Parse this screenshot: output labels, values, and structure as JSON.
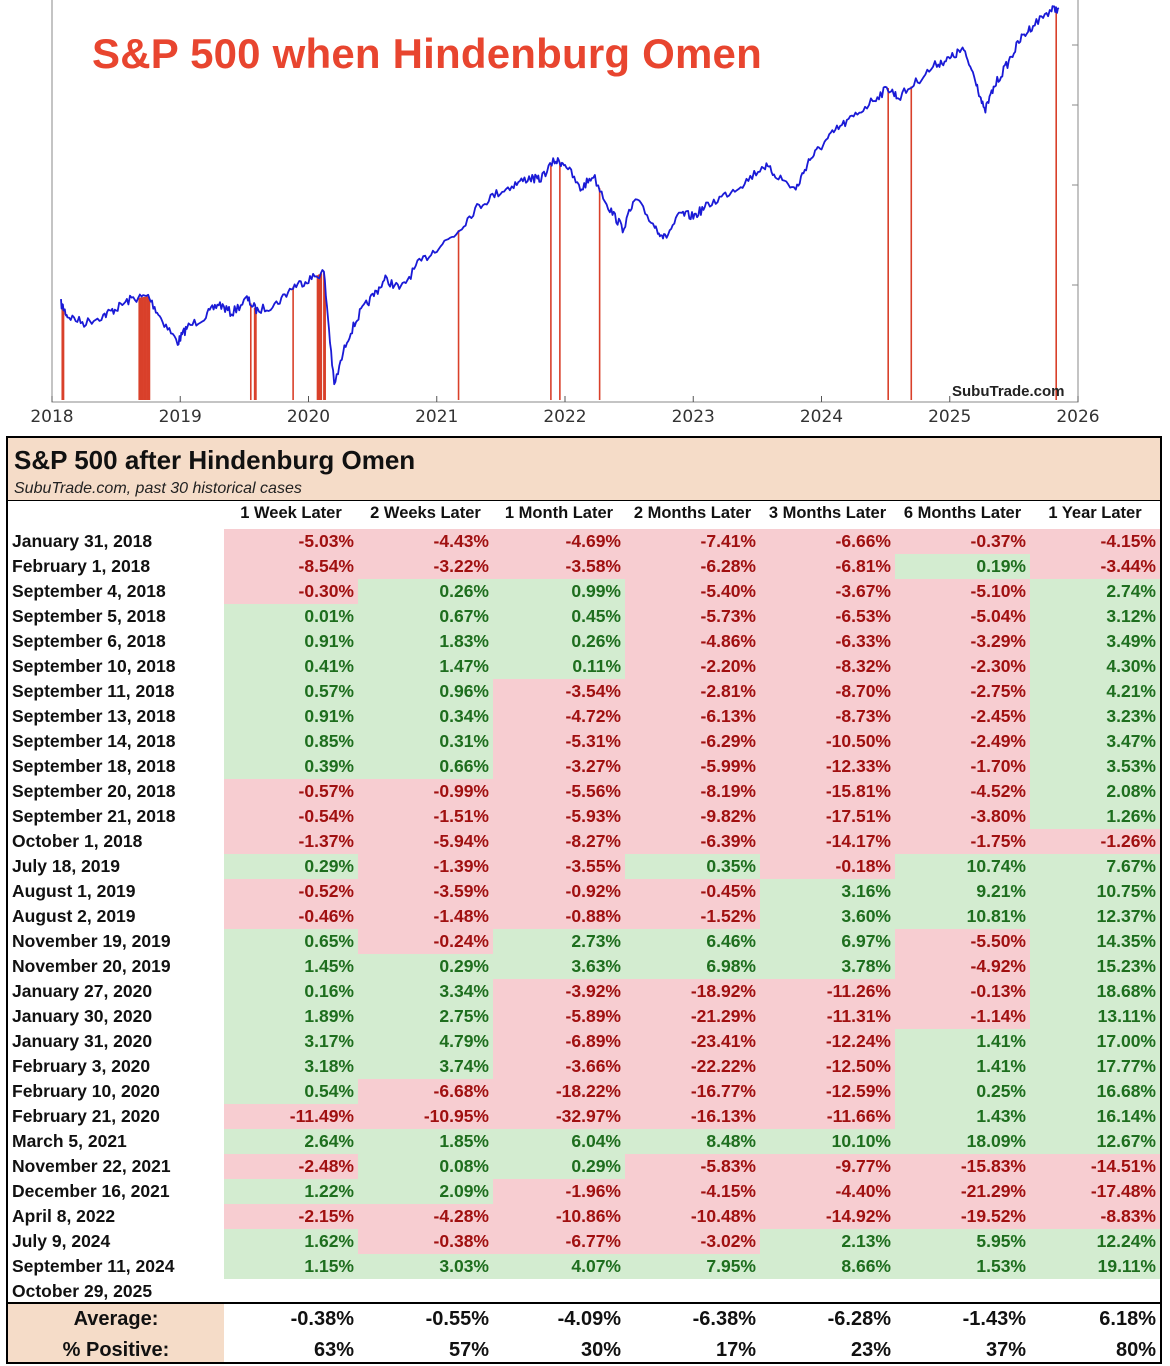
{
  "chart_data": [
    {
      "type": "line",
      "title": "S&P 500 when Hindenburg Omen",
      "x_ticks": [
        "2018",
        "2019",
        "2020",
        "2021",
        "2022",
        "2023",
        "2024",
        "2025",
        "2026"
      ],
      "xlim": [
        2018.0,
        2026.0
      ],
      "grid": false,
      "series": [
        {
          "color": "#1a1ad6",
          "points": [
            [
              2018.07,
              0.13
            ],
            [
              2018.12,
              0.08
            ],
            [
              2018.25,
              0.05
            ],
            [
              2018.4,
              0.08
            ],
            [
              2018.5,
              0.11
            ],
            [
              2018.62,
              0.15
            ],
            [
              2018.75,
              0.16
            ],
            [
              2018.85,
              0.07
            ],
            [
              2018.98,
              -0.03
            ],
            [
              2019.05,
              0.03
            ],
            [
              2019.2,
              0.08
            ],
            [
              2019.3,
              0.13
            ],
            [
              2019.4,
              0.09
            ],
            [
              2019.52,
              0.15
            ],
            [
              2019.6,
              0.1
            ],
            [
              2019.75,
              0.13
            ],
            [
              2019.88,
              0.2
            ],
            [
              2020.0,
              0.23
            ],
            [
              2020.12,
              0.26
            ],
            [
              2020.2,
              -0.21
            ],
            [
              2020.3,
              -0.02
            ],
            [
              2020.4,
              0.09
            ],
            [
              2020.5,
              0.16
            ],
            [
              2020.6,
              0.23
            ],
            [
              2020.72,
              0.19
            ],
            [
              2020.85,
              0.29
            ],
            [
              2021.0,
              0.36
            ],
            [
              2021.15,
              0.42
            ],
            [
              2021.3,
              0.52
            ],
            [
              2021.45,
              0.58
            ],
            [
              2021.6,
              0.62
            ],
            [
              2021.72,
              0.65
            ],
            [
              2021.8,
              0.64
            ],
            [
              2021.92,
              0.72
            ],
            [
              2022.0,
              0.71
            ],
            [
              2022.12,
              0.6
            ],
            [
              2022.22,
              0.66
            ],
            [
              2022.35,
              0.52
            ],
            [
              2022.45,
              0.44
            ],
            [
              2022.55,
              0.56
            ],
            [
              2022.7,
              0.45
            ],
            [
              2022.78,
              0.4
            ],
            [
              2022.9,
              0.5
            ],
            [
              2023.0,
              0.49
            ],
            [
              2023.1,
              0.53
            ],
            [
              2023.25,
              0.58
            ],
            [
              2023.4,
              0.63
            ],
            [
              2023.55,
              0.7
            ],
            [
              2023.65,
              0.66
            ],
            [
              2023.8,
              0.6
            ],
            [
              2023.9,
              0.72
            ],
            [
              2024.0,
              0.78
            ],
            [
              2024.12,
              0.85
            ],
            [
              2024.25,
              0.9
            ],
            [
              2024.4,
              0.97
            ],
            [
              2024.52,
              1.02
            ],
            [
              2024.6,
              0.98
            ],
            [
              2024.75,
              1.05
            ],
            [
              2024.9,
              1.12
            ],
            [
              2025.0,
              1.14
            ],
            [
              2025.1,
              1.18
            ],
            [
              2025.2,
              1.06
            ],
            [
              2025.27,
              0.92
            ],
            [
              2025.35,
              1.03
            ],
            [
              2025.45,
              1.12
            ],
            [
              2025.55,
              1.22
            ],
            [
              2025.65,
              1.28
            ],
            [
              2025.78,
              1.34
            ],
            [
              2025.85,
              1.35
            ]
          ]
        }
      ],
      "signal_dates": [
        2018.08,
        2018.09,
        2018.68,
        2018.69,
        2018.7,
        2018.71,
        2018.72,
        2018.73,
        2018.74,
        2018.75,
        2018.76,
        2019.55,
        2019.58,
        2019.59,
        2019.88,
        2020.07,
        2020.08,
        2020.09,
        2020.1,
        2020.12,
        2020.13,
        2021.17,
        2021.89,
        2021.96,
        2022.27,
        2024.52,
        2024.7,
        2025.83
      ],
      "watermark": "SubuTrade.com"
    },
    {
      "type": "table",
      "title": "S&P 500 after Hindenburg Omen",
      "subtitle": "SubuTrade.com, past 30 historical cases",
      "columns": [
        "1 Week Later",
        "2 Weeks Later",
        "1 Month Later",
        "2 Months Later",
        "3 Months Later",
        "6 Months Later",
        "1 Year Later"
      ],
      "rows": [
        {
          "date": "January 31, 2018",
          "values": [
            "-5.03%",
            "-4.43%",
            "-4.69%",
            "-7.41%",
            "-6.66%",
            "-0.37%",
            "-4.15%"
          ]
        },
        {
          "date": "February 1, 2018",
          "values": [
            "-8.54%",
            "-3.22%",
            "-3.58%",
            "-6.28%",
            "-6.81%",
            "0.19%",
            "-3.44%"
          ]
        },
        {
          "date": "September 4, 2018",
          "values": [
            "-0.30%",
            "0.26%",
            "0.99%",
            "-5.40%",
            "-3.67%",
            "-5.10%",
            "2.74%"
          ]
        },
        {
          "date": "September 5, 2018",
          "values": [
            "0.01%",
            "0.67%",
            "0.45%",
            "-5.73%",
            "-6.53%",
            "-5.04%",
            "3.12%"
          ]
        },
        {
          "date": "September 6, 2018",
          "values": [
            "0.91%",
            "1.83%",
            "0.26%",
            "-4.86%",
            "-6.33%",
            "-3.29%",
            "3.49%"
          ]
        },
        {
          "date": "September 10, 2018",
          "values": [
            "0.41%",
            "1.47%",
            "0.11%",
            "-2.20%",
            "-8.32%",
            "-2.30%",
            "4.30%"
          ]
        },
        {
          "date": "September 11, 2018",
          "values": [
            "0.57%",
            "0.96%",
            "-3.54%",
            "-2.81%",
            "-8.70%",
            "-2.75%",
            "4.21%"
          ]
        },
        {
          "date": "September 13, 2018",
          "values": [
            "0.91%",
            "0.34%",
            "-4.72%",
            "-6.13%",
            "-8.73%",
            "-2.45%",
            "3.23%"
          ]
        },
        {
          "date": "September 14, 2018",
          "values": [
            "0.85%",
            "0.31%",
            "-5.31%",
            "-6.29%",
            "-10.50%",
            "-2.49%",
            "3.47%"
          ]
        },
        {
          "date": "September 18, 2018",
          "values": [
            "0.39%",
            "0.66%",
            "-3.27%",
            "-5.99%",
            "-12.33%",
            "-1.70%",
            "3.53%"
          ]
        },
        {
          "date": "September 20, 2018",
          "values": [
            "-0.57%",
            "-0.99%",
            "-5.56%",
            "-8.19%",
            "-15.81%",
            "-4.52%",
            "2.08%"
          ]
        },
        {
          "date": "September 21, 2018",
          "values": [
            "-0.54%",
            "-1.51%",
            "-5.93%",
            "-9.82%",
            "-17.51%",
            "-3.80%",
            "1.26%"
          ]
        },
        {
          "date": "October 1, 2018",
          "values": [
            "-1.37%",
            "-5.94%",
            "-8.27%",
            "-6.39%",
            "-14.17%",
            "-1.75%",
            "-1.26%"
          ]
        },
        {
          "date": "July 18, 2019",
          "values": [
            "0.29%",
            "-1.39%",
            "-3.55%",
            "0.35%",
            "-0.18%",
            "10.74%",
            "7.67%"
          ]
        },
        {
          "date": "August 1, 2019",
          "values": [
            "-0.52%",
            "-3.59%",
            "-0.92%",
            "-0.45%",
            "3.16%",
            "9.21%",
            "10.75%"
          ]
        },
        {
          "date": "August 2, 2019",
          "values": [
            "-0.46%",
            "-1.48%",
            "-0.88%",
            "-1.52%",
            "3.60%",
            "10.81%",
            "12.37%"
          ]
        },
        {
          "date": "November 19, 2019",
          "values": [
            "0.65%",
            "-0.24%",
            "2.73%",
            "6.46%",
            "6.97%",
            "-5.50%",
            "14.35%"
          ]
        },
        {
          "date": "November 20, 2019",
          "values": [
            "1.45%",
            "0.29%",
            "3.63%",
            "6.98%",
            "3.78%",
            "-4.92%",
            "15.23%"
          ]
        },
        {
          "date": "January 27, 2020",
          "values": [
            "0.16%",
            "3.34%",
            "-3.92%",
            "-18.92%",
            "-11.26%",
            "-0.13%",
            "18.68%"
          ]
        },
        {
          "date": "January 30, 2020",
          "values": [
            "1.89%",
            "2.75%",
            "-5.89%",
            "-21.29%",
            "-11.31%",
            "-1.14%",
            "13.11%"
          ]
        },
        {
          "date": "January 31, 2020",
          "values": [
            "3.17%",
            "4.79%",
            "-6.89%",
            "-23.41%",
            "-12.24%",
            "1.41%",
            "17.00%"
          ]
        },
        {
          "date": "February 3, 2020",
          "values": [
            "3.18%",
            "3.74%",
            "-3.66%",
            "-22.22%",
            "-12.50%",
            "1.41%",
            "17.77%"
          ]
        },
        {
          "date": "February 10, 2020",
          "values": [
            "0.54%",
            "-6.68%",
            "-18.22%",
            "-16.77%",
            "-12.59%",
            "0.25%",
            "16.68%"
          ]
        },
        {
          "date": "February 21, 2020",
          "values": [
            "-11.49%",
            "-10.95%",
            "-32.97%",
            "-16.13%",
            "-11.66%",
            "1.43%",
            "16.14%"
          ]
        },
        {
          "date": "March 5, 2021",
          "values": [
            "2.64%",
            "1.85%",
            "6.04%",
            "8.48%",
            "10.10%",
            "18.09%",
            "12.67%"
          ]
        },
        {
          "date": "November 22, 2021",
          "values": [
            "-2.48%",
            "0.08%",
            "0.29%",
            "-5.83%",
            "-9.77%",
            "-15.83%",
            "-14.51%"
          ]
        },
        {
          "date": "December 16, 2021",
          "values": [
            "1.22%",
            "2.09%",
            "-1.96%",
            "-4.15%",
            "-4.40%",
            "-21.29%",
            "-17.48%"
          ]
        },
        {
          "date": "April 8, 2022",
          "values": [
            "-2.15%",
            "-4.28%",
            "-10.86%",
            "-10.48%",
            "-14.92%",
            "-19.52%",
            "-8.83%"
          ]
        },
        {
          "date": "July 9, 2024",
          "values": [
            "1.62%",
            "-0.38%",
            "-6.77%",
            "-3.02%",
            "2.13%",
            "5.95%",
            "12.24%"
          ]
        },
        {
          "date": "September 11, 2024",
          "values": [
            "1.15%",
            "3.03%",
            "4.07%",
            "7.95%",
            "8.66%",
            "1.53%",
            "19.11%"
          ]
        },
        {
          "date": "October 29, 2025",
          "values": [
            "",
            "",
            "",
            "",
            "",
            "",
            ""
          ]
        }
      ],
      "summary": [
        {
          "label": "Average:",
          "values": [
            "-0.38%",
            "-0.55%",
            "-4.09%",
            "-6.38%",
            "-6.28%",
            "-1.43%",
            "6.18%"
          ]
        },
        {
          "label": "% Positive:",
          "values": [
            "63%",
            "57%",
            "30%",
            "17%",
            "23%",
            "37%",
            "80%"
          ]
        }
      ]
    }
  ],
  "colors": {
    "title_red": "#e8452f",
    "line_blue": "#1a1ad6",
    "signal_red": "#d9402a",
    "neg_bg": "#f7cdd1",
    "neg_text": "#a01010",
    "pos_bg": "#d3ecd0",
    "pos_text": "#1e6e1e",
    "header_bg": "#f5dcc8"
  }
}
